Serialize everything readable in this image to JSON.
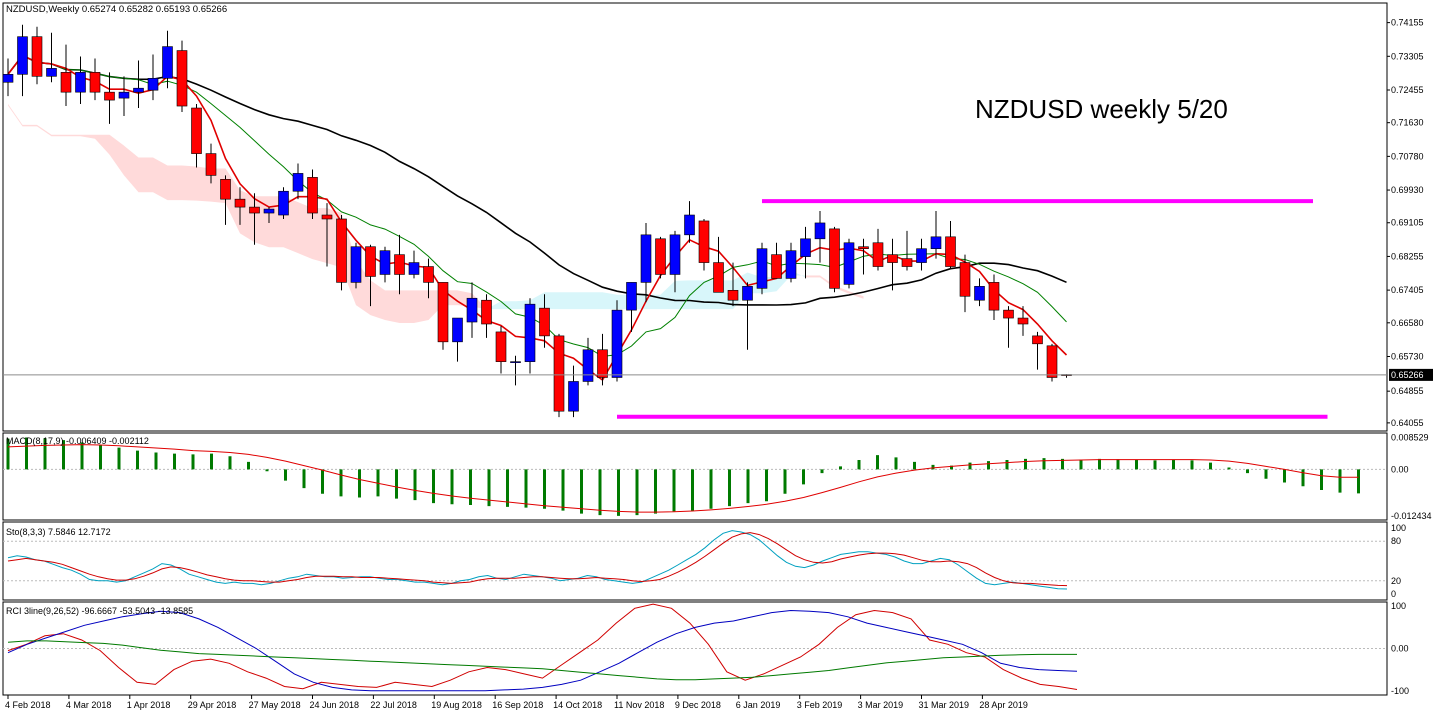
{
  "header": {
    "symbol_line": "NZDUSD,Weekly  0.65274 0.65282 0.65193 0.65266",
    "annotation": "NZDUSD weekly 5/20",
    "current_price": "0.65266"
  },
  "colors": {
    "bull_candle": "#0000ff",
    "bear_candle": "#ff0000",
    "ma_black": "#000000",
    "ma_red": "#e00000",
    "ma_green": "#008000",
    "cloud_bear": "#ffdada",
    "cloud_bull": "#d8f6fa",
    "range_lines": "#ff00ff",
    "macd_hist": "#007a00",
    "stoch_main": "#00a0c0",
    "stoch_signal": "#d00000"
  },
  "chart_data": [
    {
      "type": "candlestick",
      "panel": "price",
      "title": "NZDUSD,Weekly",
      "annotation": "NZDUSD weekly 5/20",
      "ylim": [
        0.6385,
        0.7465
      ],
      "y_ticks": [
        "0.74155",
        "0.73305",
        "0.72455",
        "0.71630",
        "0.70780",
        "0.69930",
        "0.69105",
        "0.68255",
        "0.67405",
        "0.66580",
        "0.65730",
        "0.64855",
        "0.64055"
      ],
      "x_labels": [
        "4 Feb 2018",
        "4 Mar 2018",
        "1 Apr 2018",
        "29 Apr 2018",
        "27 May 2018",
        "24 Jun 2018",
        "22 Jul 2018",
        "19 Aug 2018",
        "16 Sep 2018",
        "14 Oct 2018",
        "11 Nov 2018",
        "9 Dec 2018",
        "6 Jan 2019",
        "3 Feb 2019",
        "3 Mar 2019",
        "31 Mar 2019",
        "28 Apr 2019"
      ],
      "current_price": 0.65266,
      "candles": [
        [
          0.7265,
          0.7325,
          0.723,
          0.7285
        ],
        [
          0.7285,
          0.741,
          0.723,
          0.738
        ],
        [
          0.738,
          0.7405,
          0.726,
          0.728
        ],
        [
          0.728,
          0.739,
          0.7265,
          0.73
        ],
        [
          0.729,
          0.736,
          0.7205,
          0.724
        ],
        [
          0.724,
          0.733,
          0.721,
          0.729
        ],
        [
          0.729,
          0.7325,
          0.722,
          0.724
        ],
        [
          0.724,
          0.729,
          0.716,
          0.722
        ],
        [
          0.7225,
          0.728,
          0.718,
          0.724
        ],
        [
          0.724,
          0.732,
          0.72,
          0.725
        ],
        [
          0.7245,
          0.7335,
          0.722,
          0.7275
        ],
        [
          0.7275,
          0.7395,
          0.725,
          0.7355
        ],
        [
          0.7345,
          0.737,
          0.719,
          0.7205
        ],
        [
          0.72,
          0.721,
          0.705,
          0.7085
        ],
        [
          0.7085,
          0.711,
          0.701,
          0.703
        ],
        [
          0.702,
          0.703,
          0.6905,
          0.697
        ],
        [
          0.697,
          0.7,
          0.6905,
          0.695
        ],
        [
          0.695,
          0.6985,
          0.6855,
          0.6935
        ],
        [
          0.6935,
          0.695,
          0.691,
          0.6945
        ],
        [
          0.693,
          0.7,
          0.692,
          0.699
        ],
        [
          0.699,
          0.706,
          0.697,
          0.7035
        ],
        [
          0.7025,
          0.7045,
          0.692,
          0.6935
        ],
        [
          0.693,
          0.696,
          0.68,
          0.692
        ],
        [
          0.692,
          0.693,
          0.674,
          0.676
        ],
        [
          0.676,
          0.686,
          0.6745,
          0.685
        ],
        [
          0.685,
          0.6855,
          0.67,
          0.6775
        ],
        [
          0.678,
          0.685,
          0.676,
          0.684
        ],
        [
          0.683,
          0.688,
          0.673,
          0.678
        ],
        [
          0.678,
          0.684,
          0.677,
          0.681
        ],
        [
          0.68,
          0.682,
          0.672,
          0.676
        ],
        [
          0.676,
          0.676,
          0.659,
          0.661
        ],
        [
          0.661,
          0.667,
          0.656,
          0.667
        ],
        [
          0.666,
          0.676,
          0.662,
          0.672
        ],
        [
          0.6715,
          0.673,
          0.662,
          0.6655
        ],
        [
          0.6635,
          0.665,
          0.653,
          0.656
        ],
        [
          0.656,
          0.6575,
          0.65,
          0.656
        ],
        [
          0.656,
          0.672,
          0.653,
          0.6705
        ],
        [
          0.6695,
          0.673,
          0.6595,
          0.6625
        ],
        [
          0.6625,
          0.663,
          0.642,
          0.6435
        ],
        [
          0.6435,
          0.655,
          0.642,
          0.651
        ],
        [
          0.651,
          0.662,
          0.65,
          0.659
        ],
        [
          0.659,
          0.663,
          0.65,
          0.652
        ],
        [
          0.652,
          0.6715,
          0.651,
          0.669
        ],
        [
          0.669,
          0.676,
          0.6635,
          0.676
        ],
        [
          0.676,
          0.691,
          0.671,
          0.688
        ],
        [
          0.687,
          0.6875,
          0.677,
          0.678
        ],
        [
          0.678,
          0.689,
          0.6735,
          0.688
        ],
        [
          0.688,
          0.6965,
          0.686,
          0.693
        ],
        [
          0.6915,
          0.692,
          0.679,
          0.681
        ],
        [
          0.681,
          0.6875,
          0.6735,
          0.6735
        ],
        [
          0.674,
          0.681,
          0.67,
          0.6715
        ],
        [
          0.6715,
          0.676,
          0.659,
          0.675
        ],
        [
          0.6745,
          0.686,
          0.673,
          0.6845
        ],
        [
          0.683,
          0.686,
          0.677,
          0.677
        ],
        [
          0.677,
          0.686,
          0.676,
          0.684
        ],
        [
          0.6825,
          0.69,
          0.677,
          0.687
        ],
        [
          0.687,
          0.694,
          0.681,
          0.691
        ],
        [
          0.6895,
          0.69,
          0.6735,
          0.6745
        ],
        [
          0.6755,
          0.687,
          0.6745,
          0.686
        ],
        [
          0.685,
          0.687,
          0.678,
          0.6845
        ],
        [
          0.686,
          0.6895,
          0.679,
          0.68
        ],
        [
          0.683,
          0.687,
          0.674,
          0.681
        ],
        [
          0.682,
          0.689,
          0.679,
          0.68
        ],
        [
          0.681,
          0.687,
          0.679,
          0.6845
        ],
        [
          0.6845,
          0.694,
          0.682,
          0.6875
        ],
        [
          0.6875,
          0.6915,
          0.6795,
          0.68
        ],
        [
          0.681,
          0.683,
          0.6685,
          0.6725
        ],
        [
          0.6715,
          0.677,
          0.67,
          0.675
        ],
        [
          0.676,
          0.678,
          0.6665,
          0.669
        ],
        [
          0.669,
          0.67,
          0.6595,
          0.667
        ],
        [
          0.667,
          0.67,
          0.6625,
          0.6655
        ],
        [
          0.6625,
          0.6635,
          0.654,
          0.6605
        ],
        [
          0.66,
          0.6605,
          0.651,
          0.652
        ],
        [
          0.65274,
          0.65282,
          0.65193,
          0.65266
        ]
      ],
      "range_lines": [
        {
          "from_bar": 52,
          "to_bar": 90,
          "price": 0.6965
        },
        {
          "from_bar": 42,
          "to_bar": 91,
          "price": 0.6421
        }
      ]
    },
    {
      "type": "bar",
      "panel": "macd",
      "title": "MACD(8,17,9) -0.006409 -0.002112",
      "y_ticks": [
        "0.008529",
        "0.00",
        "-0.012434"
      ],
      "ylim": [
        -0.0135,
        0.0097
      ],
      "histogram": [
        0.0082,
        0.0085,
        0.0083,
        0.0078,
        0.0072,
        0.0065,
        0.0058,
        0.005,
        0.0045,
        0.0042,
        0.004,
        0.0042,
        0.0035,
        0.002,
        -0.0005,
        -0.003,
        -0.005,
        -0.0065,
        -0.0072,
        -0.0075,
        -0.0072,
        -0.0078,
        -0.0082,
        -0.009,
        -0.0093,
        -0.0095,
        -0.0098,
        -0.01,
        -0.0102,
        -0.0105,
        -0.011,
        -0.0118,
        -0.0122,
        -0.0124,
        -0.0122,
        -0.0118,
        -0.0112,
        -0.011,
        -0.0105,
        -0.0098,
        -0.009,
        -0.0085,
        -0.0065,
        -0.004,
        -0.001,
        0.0008,
        0.0025,
        0.0038,
        0.0032,
        0.002,
        0.0012,
        0.001,
        0.0018,
        0.0022,
        0.0025,
        0.0028,
        0.003,
        0.0028,
        0.0026,
        0.0028,
        0.0027,
        0.0025,
        0.0024,
        0.0026,
        0.0024,
        0.0018,
        0.0005,
        -0.001,
        -0.0025,
        -0.0035,
        -0.0045,
        -0.0055,
        -0.0062,
        -0.0064
      ],
      "signal": [
        0.006,
        0.0062,
        0.0064,
        0.0065,
        0.0066,
        0.0065,
        0.0063,
        0.006,
        0.0057,
        0.0054,
        0.005,
        0.0048,
        0.0045,
        0.004,
        0.0032,
        0.0022,
        0.001,
        -0.0002,
        -0.0015,
        -0.0027,
        -0.0037,
        -0.0047,
        -0.0056,
        -0.0064,
        -0.0071,
        -0.0077,
        -0.0082,
        -0.0087,
        -0.0092,
        -0.0097,
        -0.0101,
        -0.0105,
        -0.0109,
        -0.0112,
        -0.0114,
        -0.0114,
        -0.0113,
        -0.0111,
        -0.0108,
        -0.0104,
        -0.0099,
        -0.0093,
        -0.0085,
        -0.0075,
        -0.0062,
        -0.0048,
        -0.0033,
        -0.002,
        -0.001,
        -0.0002,
        0.0004,
        0.0008,
        0.0012,
        0.0015,
        0.0018,
        0.0021,
        0.0023,
        0.0024,
        0.0025,
        0.0026,
        0.0026,
        0.0026,
        0.0026,
        0.0026,
        0.0026,
        0.0025,
        0.0022,
        0.0016,
        0.0008,
        0.0,
        -0.0009,
        -0.0017,
        -0.0021,
        -0.0021
      ]
    },
    {
      "type": "line",
      "panel": "stochastic",
      "title": "Sto(8,3,3) 7.5846 12.7172",
      "y_ticks": [
        "100",
        "80",
        "20",
        "0"
      ],
      "ylim": [
        0,
        100
      ],
      "levels": [
        80,
        20
      ],
      "series": [
        {
          "values": [
            55,
            58,
            56,
            52,
            50,
            45,
            40,
            36,
            30,
            22,
            20,
            20,
            18,
            20,
            26,
            32,
            38,
            46,
            44,
            38,
            30,
            26,
            22,
            18,
            16,
            18,
            16,
            16,
            14,
            16,
            20,
            24,
            26,
            30,
            28,
            26,
            26,
            24,
            25,
            26,
            26,
            24,
            22,
            22,
            20,
            18,
            18,
            16,
            14,
            16,
            20,
            22,
            26,
            28,
            24,
            22,
            26,
            30,
            28,
            26,
            24,
            20,
            22,
            24,
            28,
            26,
            22,
            20,
            18,
            16,
            18,
            24,
            30,
            36,
            44,
            52,
            60,
            70,
            82,
            92,
            96,
            94,
            90,
            82,
            70,
            58,
            48,
            42,
            40,
            44,
            50,
            55,
            60,
            62,
            64,
            64,
            62,
            60,
            56,
            50,
            46,
            46,
            50,
            54,
            52,
            44,
            34,
            24,
            16,
            14,
            16,
            18,
            16,
            14,
            12,
            10,
            8,
            7.6
          ]
        },
        {
          "values": [
            50,
            52,
            54,
            52,
            50,
            48,
            45,
            40,
            35,
            30,
            26,
            23,
            21,
            21,
            23,
            27,
            32,
            38,
            41,
            40,
            37,
            33,
            29,
            26,
            23,
            21,
            20,
            20,
            19,
            18,
            18,
            20,
            22,
            25,
            27,
            27,
            27,
            26,
            26,
            25,
            25,
            25,
            24,
            23,
            22,
            21,
            20,
            18,
            17,
            16,
            17,
            18,
            21,
            23,
            24,
            24,
            24,
            25,
            26,
            26,
            25,
            24,
            23,
            23,
            24,
            25,
            24,
            23,
            22,
            20,
            19,
            20,
            22,
            27,
            33,
            40,
            48,
            57,
            67,
            77,
            86,
            91,
            93,
            90,
            84,
            76,
            67,
            58,
            52,
            48,
            47,
            49,
            53,
            56,
            59,
            61,
            62,
            62,
            61,
            59,
            55,
            51,
            49,
            49,
            50,
            49,
            46,
            40,
            32,
            25,
            20,
            17,
            16,
            16,
            15,
            14,
            13,
            12.7
          ]
        }
      ]
    },
    {
      "type": "line",
      "panel": "rci",
      "title": "RCI 3line(9,26,52) -96.6667 -53.5043 -13.8585",
      "y_ticks": [
        "100",
        "0.00",
        "-100"
      ],
      "ylim": [
        -110,
        110
      ],
      "series": [
        {
          "values": [
            -5,
            10,
            30,
            35,
            20,
            -5,
            -45,
            -80,
            -85,
            -50,
            -30,
            -25,
            -35,
            -55,
            -70,
            -90,
            -95,
            -80,
            -85,
            -90,
            -92,
            -80,
            -85,
            -90,
            -75,
            -55,
            -45,
            -50,
            -60,
            -70,
            -40,
            -10,
            20,
            60,
            95,
            105,
            95,
            60,
            10,
            -55,
            -75,
            -60,
            -40,
            -20,
            10,
            50,
            80,
            90,
            85,
            70,
            20,
            10,
            -10,
            -20,
            -50,
            -70,
            -85,
            -90,
            -97
          ]
        },
        {
          "values": [
            -10,
            10,
            25,
            40,
            55,
            65,
            75,
            82,
            88,
            85,
            70,
            50,
            25,
            0,
            -30,
            -60,
            -80,
            -92,
            -98,
            -100,
            -100,
            -100,
            -100,
            -100,
            -100,
            -100,
            -98,
            -96,
            -92,
            -85,
            -75,
            -55,
            -35,
            -10,
            15,
            35,
            50,
            60,
            65,
            75,
            85,
            90,
            88,
            85,
            75,
            60,
            50,
            40,
            30,
            20,
            10,
            -10,
            -35,
            -45,
            -50,
            -52,
            -54
          ]
        },
        {
          "values": [
            15,
            18,
            18,
            16,
            14,
            12,
            8,
            2,
            -4,
            -8,
            -12,
            -14,
            -16,
            -18,
            -20,
            -22,
            -24,
            -26,
            -28,
            -30,
            -32,
            -34,
            -36,
            -38,
            -40,
            -42,
            -44,
            -46,
            -48,
            -52,
            -56,
            -60,
            -64,
            -68,
            -72,
            -74,
            -74,
            -72,
            -70,
            -68,
            -64,
            -60,
            -56,
            -52,
            -46,
            -40,
            -34,
            -30,
            -26,
            -22,
            -20,
            -18,
            -16,
            -15,
            -14,
            -14,
            -13.9
          ]
        }
      ]
    }
  ]
}
